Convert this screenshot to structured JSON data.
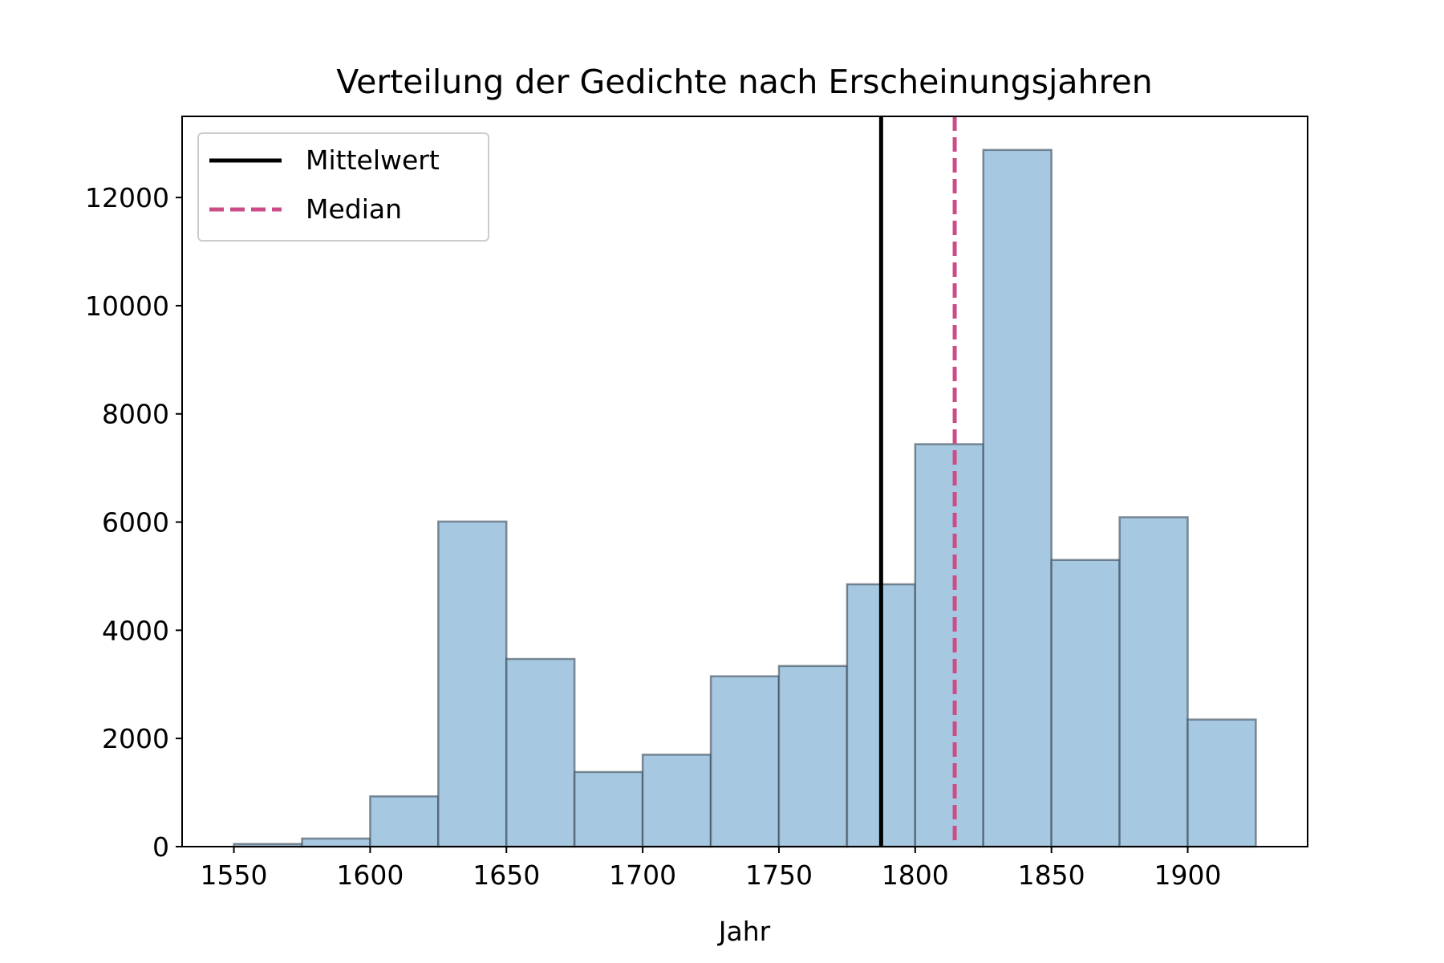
{
  "chart_data": {
    "type": "bar",
    "subtype": "histogram",
    "title": "Verteilung der Gedichte nach Erscheinungsjahren",
    "xlabel": "Jahr",
    "ylabel": "",
    "xlim": [
      1531,
      1944
    ],
    "ylim": [
      0,
      13500
    ],
    "xticks": [
      1550,
      1600,
      1650,
      1700,
      1750,
      1800,
      1850,
      1900
    ],
    "yticks": [
      0,
      2000,
      4000,
      6000,
      8000,
      10000,
      12000
    ],
    "grid": false,
    "bins": [
      {
        "x0": 1550,
        "x1": 1575,
        "value": 50
      },
      {
        "x0": 1575,
        "x1": 1600,
        "value": 150
      },
      {
        "x0": 1600,
        "x1": 1625,
        "value": 930
      },
      {
        "x0": 1625,
        "x1": 1650,
        "value": 6010
      },
      {
        "x0": 1650,
        "x1": 1675,
        "value": 3470
      },
      {
        "x0": 1675,
        "x1": 1700,
        "value": 1380
      },
      {
        "x0": 1700,
        "x1": 1725,
        "value": 1700
      },
      {
        "x0": 1725,
        "x1": 1750,
        "value": 3150
      },
      {
        "x0": 1750,
        "x1": 1775,
        "value": 3340
      },
      {
        "x0": 1775,
        "x1": 1800,
        "value": 4850
      },
      {
        "x0": 1800,
        "x1": 1825,
        "value": 7440
      },
      {
        "x0": 1825,
        "x1": 1850,
        "value": 12880
      },
      {
        "x0": 1850,
        "x1": 1875,
        "value": 5300
      },
      {
        "x0": 1875,
        "x1": 1900,
        "value": 6090
      },
      {
        "x0": 1900,
        "x1": 1925,
        "value": 2350
      }
    ],
    "lines": [
      {
        "name": "Mittelwert",
        "x": 1787.5,
        "color": "#000000",
        "style": "solid"
      },
      {
        "name": "Median",
        "x": 1814.5,
        "color": "#cc4c87",
        "style": "dashed"
      }
    ],
    "legend_position": "top-left",
    "colors": {
      "bar_fill": "#a6c8e0",
      "bar_edge": "#3a4a56"
    }
  }
}
